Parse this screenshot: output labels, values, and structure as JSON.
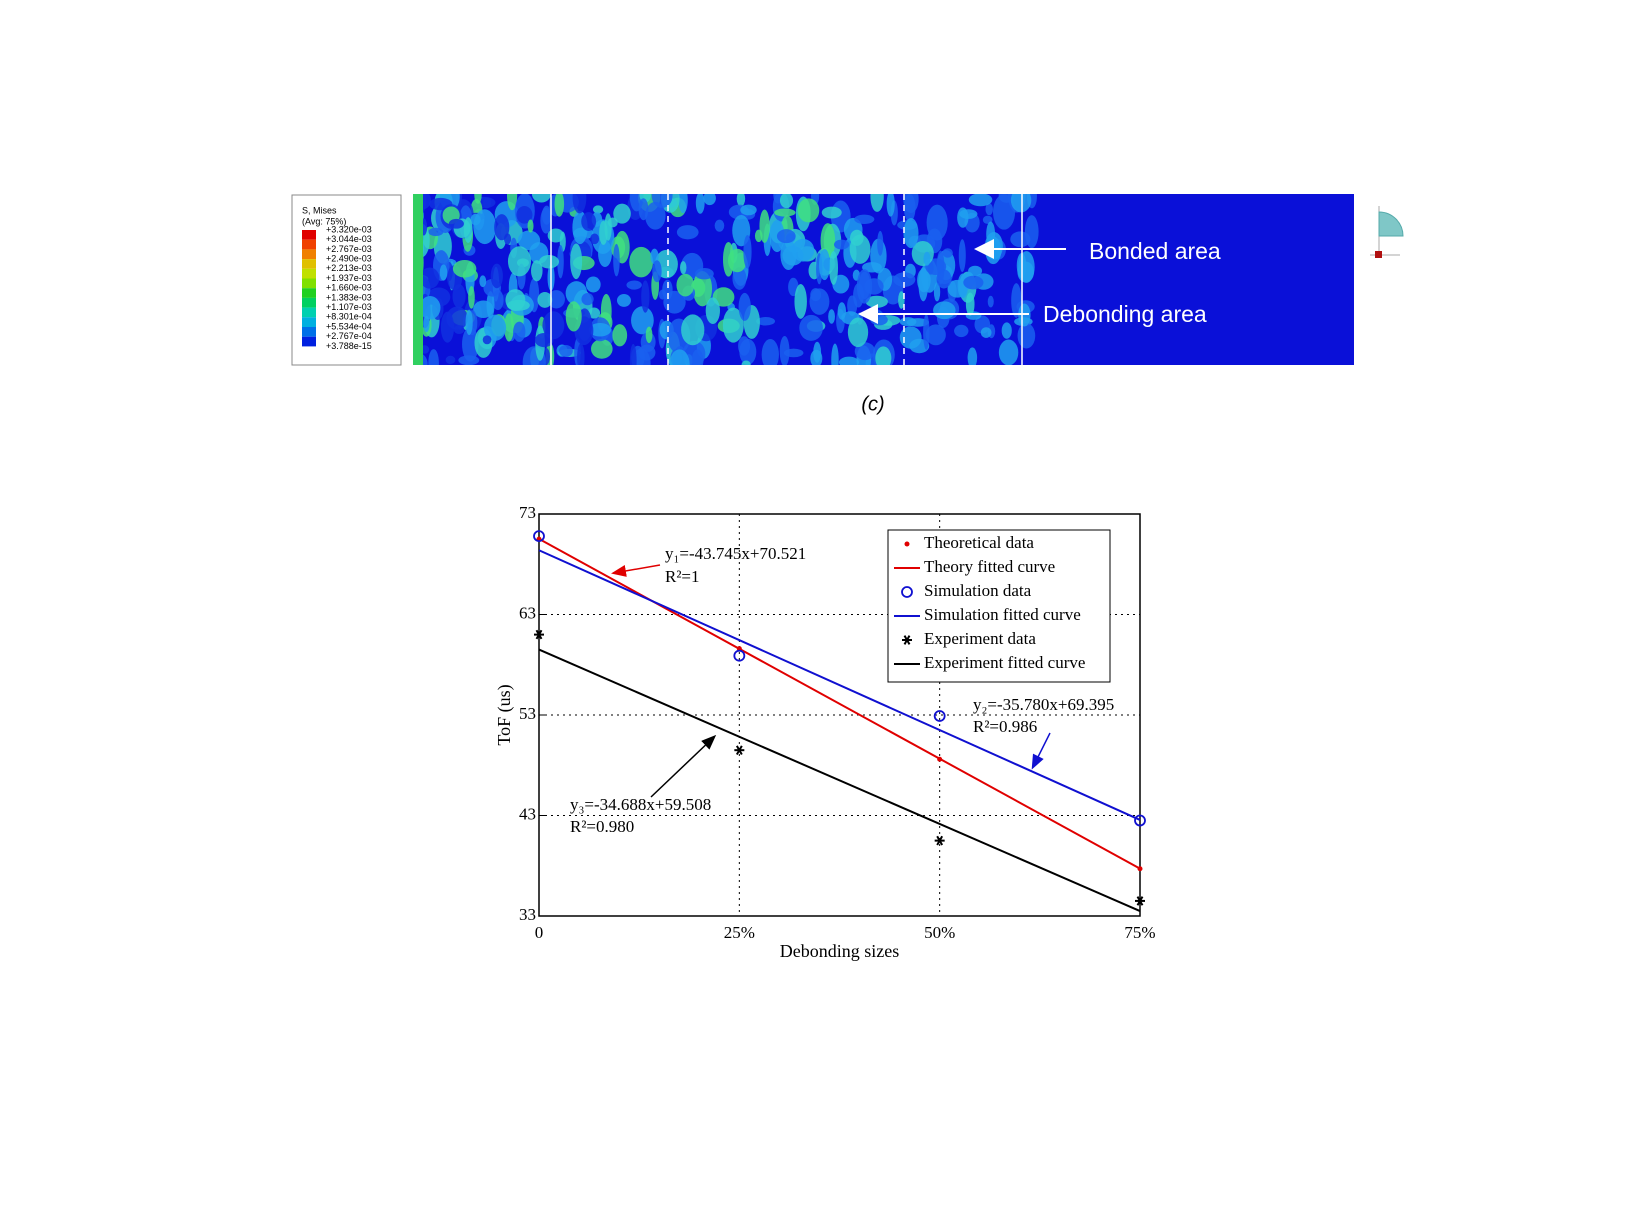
{
  "contour_legend": {
    "title": "S, Mises",
    "subtitle": "(Avg: 75%)",
    "levels": [
      "+3.320e-03",
      "+3.044e-03",
      "+2.767e-03",
      "+2.490e-03",
      "+2.213e-03",
      "+1.937e-03",
      "+1.660e-03",
      "+1.383e-03",
      "+1.107e-03",
      "+8.301e-04",
      "+5.534e-04",
      "+2.767e-04",
      "+3.788e-15"
    ]
  },
  "contour_labels": {
    "bonded": "Bonded area",
    "debonding": "Debonding area"
  },
  "caption": "(c)",
  "chart_data": {
    "type": "scatter",
    "xlabel": "Debonding sizes",
    "ylabel": "ToF (us)",
    "xlim": [
      0,
      0.75
    ],
    "xticks": [
      0,
      {
        "value": 0.25,
        "label": "25%"
      },
      {
        "value": 0.5,
        "label": "50%"
      },
      {
        "value": 0.75,
        "label": "75%"
      }
    ],
    "ylim": [
      33,
      73
    ],
    "yticks": [
      33,
      43,
      53,
      63,
      73
    ],
    "grid": true,
    "legend": "upper right",
    "series": [
      {
        "name": "Theoretical data",
        "color": "#e00000",
        "marker": "dot",
        "x": [
          0,
          0.25,
          0.5,
          0.75
        ],
        "values": [
          70.5,
          59.6,
          48.6,
          37.7
        ]
      },
      {
        "name": "Theory fitted curve",
        "color": "#e00000",
        "marker": "line",
        "x": [
          0,
          0.75
        ],
        "values": [
          70.521,
          37.712
        ]
      },
      {
        "name": "Simulation data",
        "color": "#1010d0",
        "marker": "circle",
        "x": [
          0,
          0.25,
          0.5,
          0.75
        ],
        "values": [
          70.8,
          58.9,
          52.9,
          42.5
        ]
      },
      {
        "name": "Simulation fitted curve",
        "color": "#1010d0",
        "marker": "line",
        "x": [
          0,
          0.75
        ],
        "values": [
          69.395,
          42.56
        ]
      },
      {
        "name": "Experiment data",
        "color": "#000000",
        "marker": "asterisk",
        "x": [
          0,
          0.25,
          0.5,
          0.75
        ],
        "values": [
          61.0,
          49.5,
          40.5,
          34.5
        ]
      },
      {
        "name": "Experiment fitted curve",
        "color": "#000000",
        "marker": "line",
        "x": [
          0,
          0.75
        ],
        "values": [
          59.508,
          33.492
        ]
      }
    ],
    "annotations": [
      "y₁=-43.745x+70.521",
      "R²=1",
      "y₂=-35.780x+69.395",
      "R²=0.986",
      "y₃=-34.688x+59.508",
      "R²=0.980"
    ]
  }
}
